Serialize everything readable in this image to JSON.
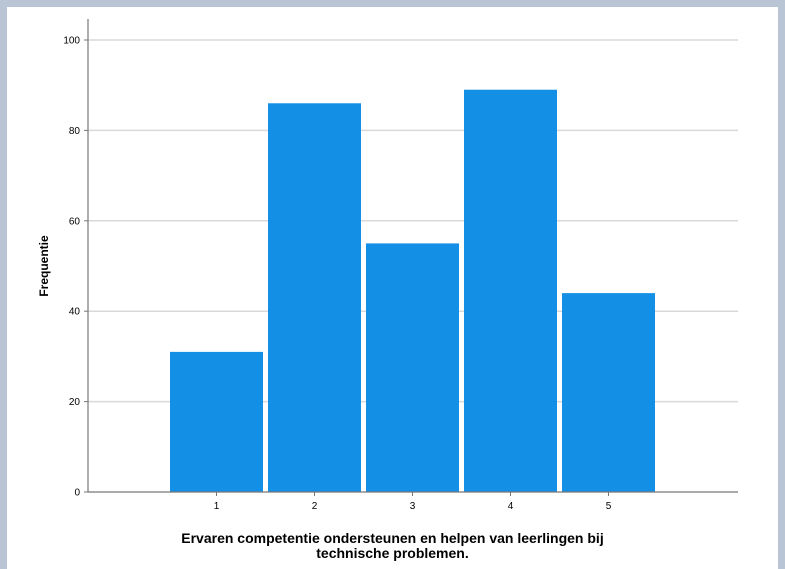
{
  "chart_data": {
    "type": "bar",
    "categories": [
      "1",
      "2",
      "3",
      "4",
      "5"
    ],
    "values": [
      31,
      86,
      55,
      89,
      44
    ],
    "ylabel": "Frequentie",
    "xlabel_lines": [
      "Ervaren competentie ondersteunen en helpen van leerlingen bij",
      "technische problemen."
    ],
    "ylim": [
      0,
      100
    ],
    "yticks": [
      "0",
      "20",
      "40",
      "60",
      "80",
      "100"
    ],
    "grid": true,
    "bar_color": "#1390e6",
    "grid_color": "#d9d9d9",
    "axis_color": "#777777",
    "background_color": "#ffffff",
    "frame_color": "#b9c4d4"
  }
}
